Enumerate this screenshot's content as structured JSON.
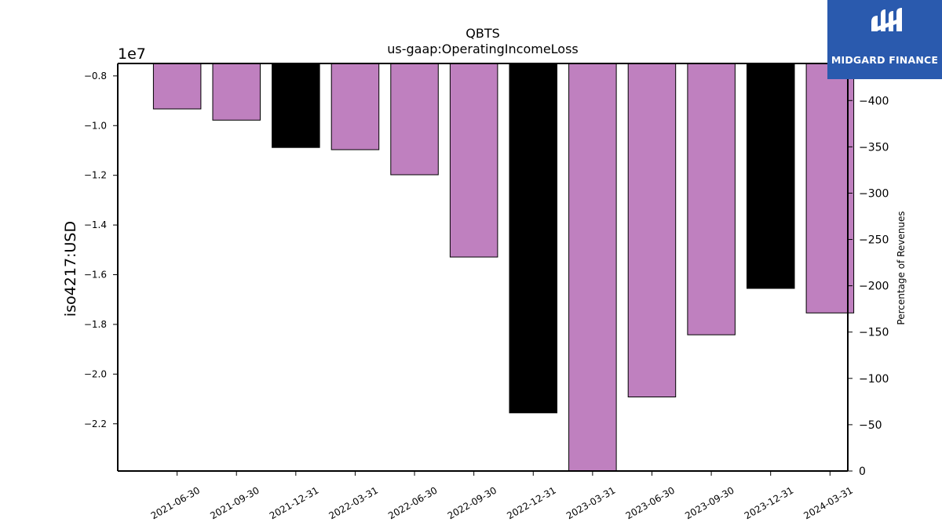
{
  "chart_data": {
    "type": "bar",
    "title": "QBTS",
    "subtitle": "us-gaap:OperatingIncomeLoss",
    "ylabel": "iso4217:USD",
    "y2label": "Percentage of Revenues",
    "y_offset_label": "1e7",
    "categories": [
      "2021-06-30",
      "2021-09-30",
      "2021-12-31",
      "2022-03-31",
      "2022-06-30",
      "2022-09-30",
      "2022-12-31",
      "2023-03-31",
      "2023-06-30",
      "2023-09-30",
      "2023-12-31",
      "2024-03-31"
    ],
    "values": [
      -9330000,
      -9780000,
      -10880000,
      -10970000,
      -11980000,
      -15290000,
      -21560000,
      -23900000,
      -20920000,
      -18420000,
      -16550000,
      -17540000
    ],
    "bar_colors": [
      "#bf80bf",
      "#bf80bf",
      "#000000",
      "#bf80bf",
      "#bf80bf",
      "#bf80bf",
      "#000000",
      "#bf80bf",
      "#bf80bf",
      "#bf80bf",
      "#000000",
      "#bf80bf"
    ],
    "ylim": [
      -23900000,
      -7500000
    ],
    "yticks": [
      -8000000,
      -10000000,
      -12000000,
      -14000000,
      -16000000,
      -18000000,
      -20000000,
      -22000000
    ],
    "ytick_labels": [
      "−0.8",
      "−1.0",
      "−1.2",
      "−1.4",
      "−1.6",
      "−1.8",
      "−2.0",
      "−2.2"
    ],
    "y2lim": [
      0,
      -440
    ],
    "y2ticks": [
      -400,
      -350,
      -300,
      -250,
      -200,
      -150,
      -100,
      -50,
      0
    ],
    "y2tick_labels": [
      "−400",
      "−350",
      "−300",
      "−250",
      "−200",
      "−150",
      "−100",
      "−50",
      "0"
    ],
    "grid": false
  },
  "logo": {
    "text": "MIDGARD FINANCE",
    "color": "#2a5aae"
  }
}
